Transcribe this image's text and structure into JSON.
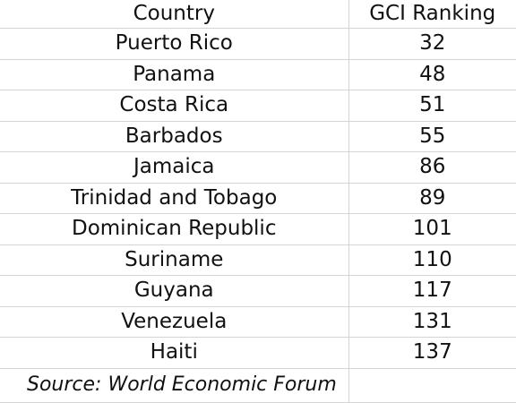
{
  "table": {
    "headers": {
      "country": "Country",
      "ranking": "GCI Ranking"
    },
    "rows": [
      {
        "country": "Puerto Rico",
        "ranking": "32"
      },
      {
        "country": "Panama",
        "ranking": "48"
      },
      {
        "country": "Costa Rica",
        "ranking": "51"
      },
      {
        "country": "Barbados",
        "ranking": "55"
      },
      {
        "country": "Jamaica",
        "ranking": "86"
      },
      {
        "country": "Trinidad and Tobago",
        "ranking": "89"
      },
      {
        "country": "Dominican Republic",
        "ranking": "101"
      },
      {
        "country": "Suriname",
        "ranking": "110"
      },
      {
        "country": "Guyana",
        "ranking": "117"
      },
      {
        "country": "Venezuela",
        "ranking": "131"
      },
      {
        "country": "Haiti",
        "ranking": "137"
      }
    ],
    "source": "Source: World Economic Forum"
  }
}
